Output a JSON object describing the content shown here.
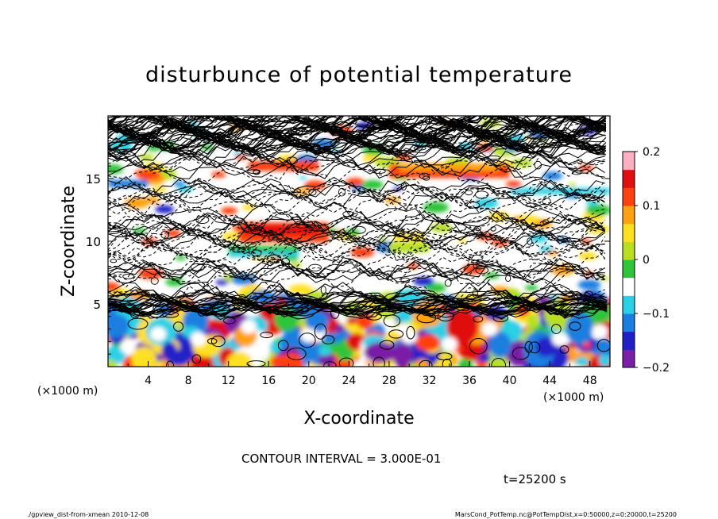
{
  "chart_data": {
    "type": "heatmap",
    "title": "disturbunce of potential temperature",
    "xlabel": "X-coordinate",
    "ylabel": "Z-coordinate",
    "x_unit_left": "(×1000 m)",
    "x_unit_right": "(×1000 m)",
    "xlim": [
      0,
      50
    ],
    "ylim": [
      0,
      20
    ],
    "x_ticks": [
      "4",
      "8",
      "12",
      "16",
      "20",
      "24",
      "28",
      "32",
      "36",
      "40",
      "44",
      "48"
    ],
    "y_ticks": [
      "5",
      "10",
      "15"
    ],
    "colorbar": {
      "range": [
        -0.2,
        0.2
      ],
      "tick_labels": [
        "0.2",
        "0.1",
        "0",
        "−0.1",
        "−0.2"
      ],
      "colors": [
        "#7a1fa8",
        "#2020c8",
        "#1a7fe0",
        "#29d0e6",
        "#ffffff",
        "#2fc43a",
        "#b8e020",
        "#ffe020",
        "#ffa010",
        "#ff4010",
        "#e01010",
        "#ffb0c0"
      ]
    },
    "contour_interval": "CONTOUR INTERVAL = 3.000E-01",
    "grid": false
  },
  "time_label": "t=25200 s",
  "footer": {
    "left": "./gpview_dist-from-xmean  2010-12-08",
    "right": "MarsCond_PotTemp.nc@PotTempDist,x=0:50000,z=0:20000,t=25200"
  }
}
